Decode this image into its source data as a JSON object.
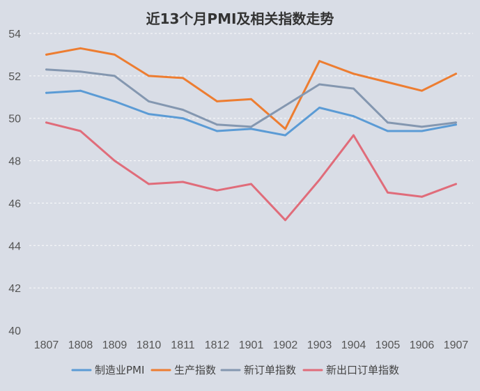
{
  "chart_data": {
    "type": "line",
    "title": "近13个月PMI及相关指数走势",
    "categories": [
      "1807",
      "1808",
      "1809",
      "1810",
      "1811",
      "1812",
      "1901",
      "1902",
      "1903",
      "1904",
      "1905",
      "1906",
      "1907"
    ],
    "ylim": [
      40,
      54
    ],
    "yticks": [
      40,
      42,
      44,
      46,
      48,
      50,
      52,
      54
    ],
    "grid": true,
    "legend_position": "bottom",
    "series": [
      {
        "name": "制造业PMI",
        "color": "#5b9bd5",
        "values": [
          51.2,
          51.3,
          50.8,
          50.2,
          50.0,
          49.4,
          49.5,
          49.2,
          50.5,
          50.1,
          49.4,
          49.4,
          49.7
        ]
      },
      {
        "name": "生产指数",
        "color": "#ed7d31",
        "values": [
          53.0,
          53.3,
          53.0,
          52.0,
          51.9,
          50.8,
          50.9,
          49.5,
          52.7,
          52.1,
          51.7,
          51.3,
          52.1
        ]
      },
      {
        "name": "新订单指数",
        "color": "#8497b0",
        "values": [
          52.3,
          52.2,
          52.0,
          50.8,
          50.4,
          49.7,
          49.6,
          50.6,
          51.6,
          51.4,
          49.8,
          49.6,
          49.8
        ]
      },
      {
        "name": "新出口订单指数",
        "color": "#e06c7a",
        "values": [
          49.8,
          49.4,
          48.0,
          46.9,
          47.0,
          46.6,
          46.9,
          45.2,
          47.1,
          49.2,
          46.5,
          46.3,
          46.9
        ]
      }
    ]
  }
}
